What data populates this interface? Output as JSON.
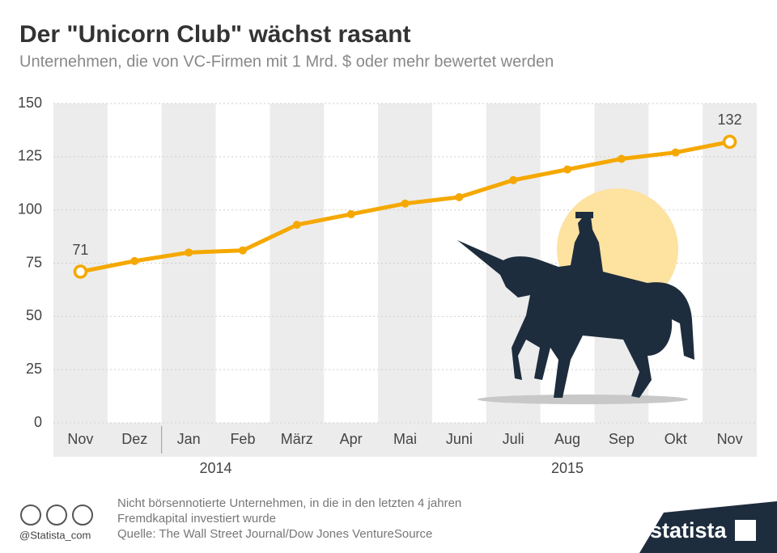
{
  "chart_data": {
    "type": "line",
    "title": "Der \"Unicorn Club\" wächst rasant",
    "subtitle": "Unternehmen, die von VC-Firmen mit 1 Mrd. $ oder mehr bewertet werden",
    "categories": [
      "Nov",
      "Dez",
      "Jan",
      "Feb",
      "März",
      "Apr",
      "Mai",
      "Juni",
      "Juli",
      "Aug",
      "Sep",
      "Okt",
      "Nov"
    ],
    "x_groups": [
      "2014",
      "2015"
    ],
    "values": [
      71,
      76,
      80,
      81,
      93,
      98,
      103,
      106,
      114,
      119,
      124,
      127,
      132
    ],
    "color": "#f5a800",
    "ylim": [
      0,
      150
    ],
    "yticks": [
      0,
      25,
      50,
      75,
      100,
      125,
      150
    ],
    "grid": true
  },
  "footer": {
    "note": [
      "Nicht börsennotierte Unternehmen, in die in den letzten 4 jahren",
      "Fremdkapital investiert wurde"
    ],
    "source": "Quelle: The Wall Street Journal/Dow Jones VentureSource",
    "handle": "@Statista_com",
    "brand": "statista"
  }
}
